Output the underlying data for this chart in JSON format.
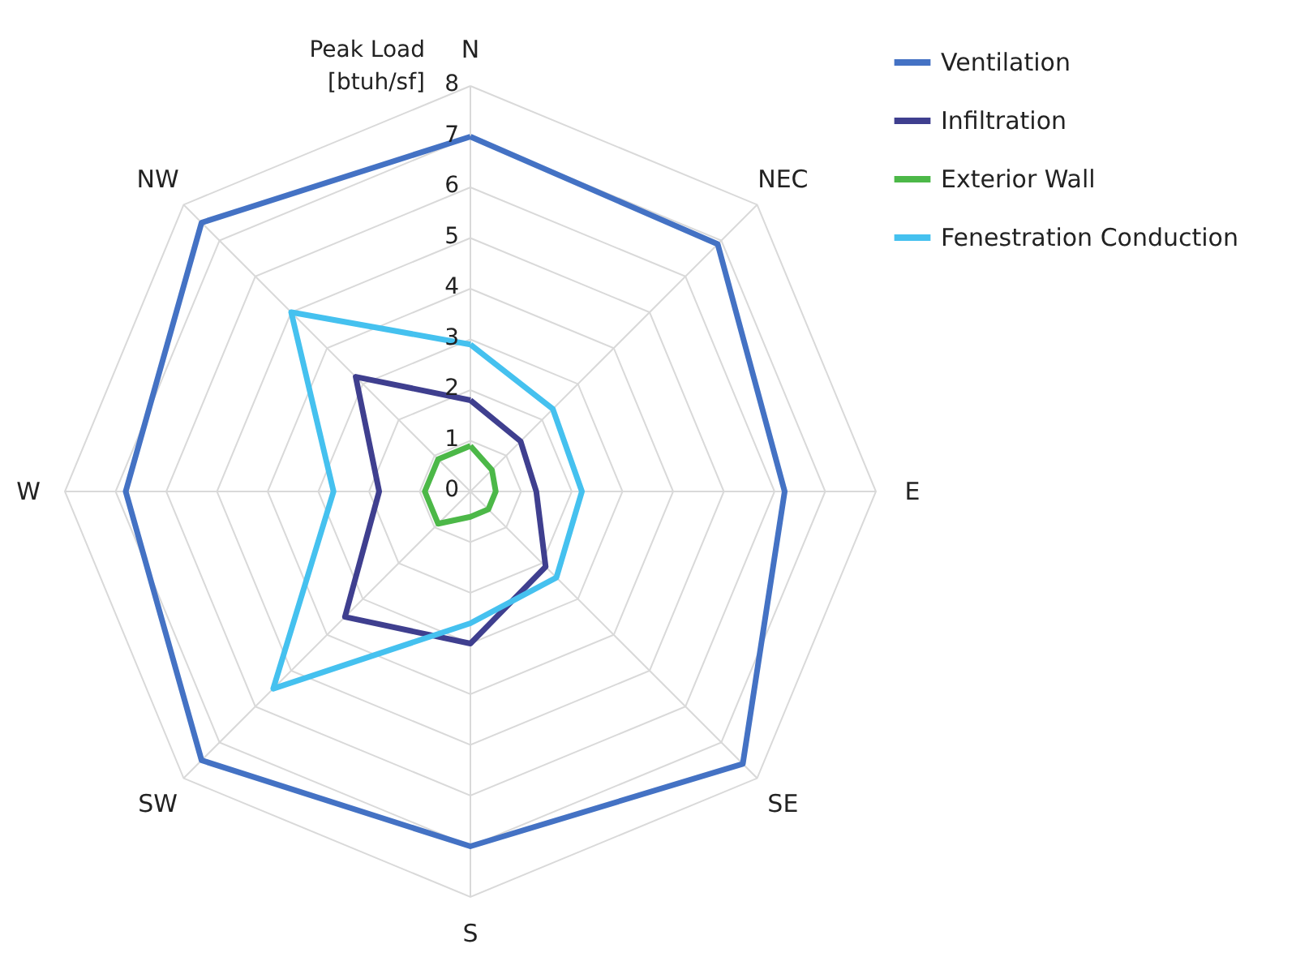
{
  "chart_data": {
    "type": "radar",
    "ylabel": "Peak Load\n[btuh/sf]",
    "categories": [
      "N",
      "NEC",
      "E",
      "SE",
      "S",
      "SW",
      "W",
      "NW"
    ],
    "series": [
      {
        "name": "Ventilation",
        "color": "#4472c4",
        "values": [
          7.0,
          6.9,
          6.2,
          7.6,
          7.0,
          7.5,
          6.8,
          7.5
        ]
      },
      {
        "name": "Infiltration",
        "color": "#3f3f8f",
        "values": [
          1.8,
          1.4,
          1.3,
          2.1,
          3.0,
          3.5,
          1.8,
          3.2
        ]
      },
      {
        "name": "Exterior Wall",
        "color": "#4cb848",
        "values": [
          0.9,
          0.6,
          0.5,
          0.5,
          0.5,
          0.9,
          0.9,
          0.9
        ]
      },
      {
        "name": "Fenestration Conduction",
        "color": "#45c1ef",
        "values": [
          2.9,
          2.3,
          2.2,
          2.4,
          2.6,
          5.5,
          2.7,
          5.0
        ]
      }
    ],
    "ylim": [
      0,
      8
    ],
    "yticks": [
      0,
      1,
      2,
      3,
      4,
      5,
      6,
      7,
      8
    ],
    "grid": true,
    "legend": "right"
  }
}
